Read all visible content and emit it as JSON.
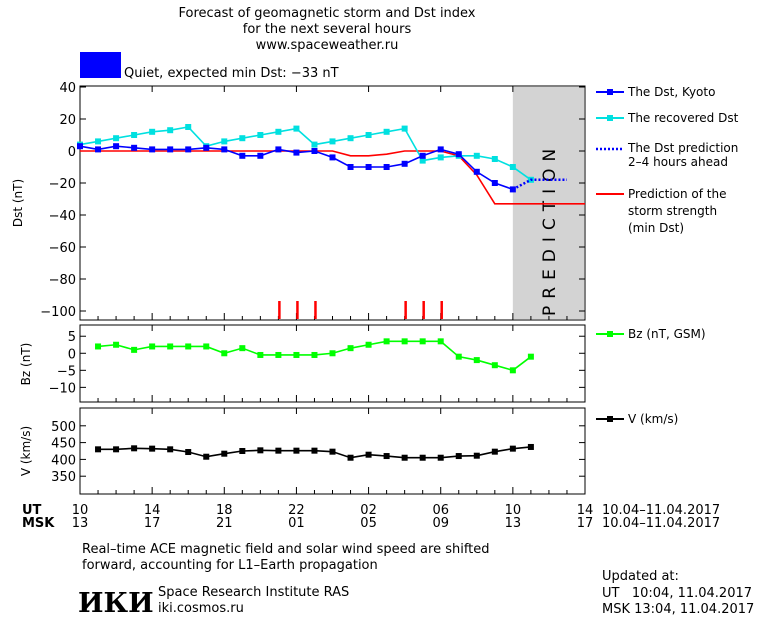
{
  "header": {
    "title_line1": "Forecast of geomagnetic storm and Dst index",
    "title_line2": "for the next several hours",
    "url": "www.spaceweather.ru",
    "status_color": "#0000ff",
    "status_text": "Quiet, expected min Dst: −33 nT"
  },
  "chart_data": [
    {
      "type": "line",
      "panel": "dst",
      "ylabel": "Dst (nT)",
      "ylim": [
        -105,
        40
      ],
      "yticks": [
        40,
        20,
        0,
        -20,
        -40,
        -60,
        -80,
        -100
      ],
      "x_range_hours": [
        0,
        28
      ],
      "prediction_band": {
        "x_from": 24,
        "x_to": 28,
        "label": "PREDICTION",
        "color": "#d3d3d3"
      },
      "series": [
        {
          "name": "The Dst, Kyoto",
          "color": "#0000ff",
          "marker": "square",
          "x": [
            0,
            1,
            2,
            3,
            4,
            5,
            6,
            7,
            8,
            9,
            10,
            11,
            12,
            13,
            14,
            15,
            16,
            17,
            18,
            19,
            20,
            21,
            22,
            23,
            24
          ],
          "y": [
            3,
            1,
            3,
            2,
            1,
            1,
            1,
            2,
            1,
            -3,
            -3,
            1,
            -1,
            0,
            -4,
            -10,
            -10,
            -10,
            -8,
            -3,
            1,
            -2,
            -13,
            -20,
            -24
          ]
        },
        {
          "name": "The recovered Dst",
          "color": "#00e0e0",
          "marker": "square",
          "x": [
            0,
            1,
            2,
            3,
            4,
            5,
            6,
            7,
            8,
            9,
            10,
            11,
            12,
            13,
            14,
            15,
            16,
            17,
            18,
            19,
            20,
            21,
            22,
            23,
            24,
            25
          ],
          "y": [
            4,
            6,
            8,
            10,
            12,
            13,
            15,
            3,
            6,
            8,
            10,
            12,
            14,
            4,
            6,
            8,
            10,
            12,
            14,
            -6,
            -4,
            -3,
            -3,
            -5,
            -10,
            -18
          ]
        },
        {
          "name": "The Dst prediction",
          "label_line2": "2–4 hours ahead",
          "color": "#0000ff",
          "style": "dotted",
          "x": [
            24,
            25,
            26,
            27
          ],
          "y": [
            -24,
            -18,
            -18,
            -18
          ]
        },
        {
          "name": "Prediction of the",
          "label_line2": "storm strength",
          "label_line3": "(min Dst)",
          "color": "#ff0000",
          "style": "solid",
          "x": [
            0,
            14,
            15,
            16,
            17,
            18,
            19,
            20,
            21,
            22,
            23,
            24,
            28
          ],
          "y": [
            0,
            0,
            -3,
            -3,
            -2,
            0,
            0,
            0,
            -3,
            -15,
            -33,
            -33,
            -33
          ]
        }
      ],
      "event_markers": {
        "color": "#ff0000",
        "x": [
          11,
          12,
          13,
          18,
          19,
          20
        ]
      }
    },
    {
      "type": "line",
      "panel": "bz",
      "ylabel": "Bz (nT)",
      "ylim": [
        -14,
        8
      ],
      "yticks": [
        5,
        0,
        -5,
        -10
      ],
      "series": [
        {
          "name": "Bz (nT, GSM)",
          "color": "#00ff00",
          "marker": "square",
          "x": [
            1,
            2,
            3,
            4,
            5,
            6,
            7,
            8,
            9,
            10,
            11,
            12,
            13,
            14,
            15,
            16,
            17,
            18,
            19,
            20,
            21,
            22,
            23,
            24,
            25
          ],
          "y": [
            2,
            2.5,
            1,
            2,
            2,
            2,
            2,
            0,
            1.5,
            -0.5,
            -0.5,
            -0.5,
            -0.5,
            0,
            1.5,
            2.5,
            3.5,
            3.5,
            3.5,
            3.5,
            -1,
            -2,
            -3.5,
            -5,
            -1
          ]
        }
      ]
    },
    {
      "type": "line",
      "panel": "v",
      "ylabel": "V (km/s)",
      "ylim": [
        300,
        550
      ],
      "yticks": [
        500,
        450,
        400,
        350
      ],
      "series": [
        {
          "name": "V (km/s)",
          "color": "#000000",
          "marker": "square",
          "x": [
            1,
            2,
            3,
            4,
            5,
            6,
            7,
            8,
            9,
            10,
            11,
            12,
            13,
            14,
            15,
            16,
            17,
            18,
            19,
            20,
            21,
            22,
            23,
            24,
            25
          ],
          "y": [
            430,
            430,
            433,
            432,
            430,
            422,
            408,
            417,
            425,
            427,
            426,
            426,
            426,
            423,
            405,
            414,
            410,
            405,
            405,
            405,
            410,
            411,
            423,
            432,
            437
          ]
        }
      ]
    }
  ],
  "time_axis": {
    "ut_label": "UT",
    "msk_label": "MSK",
    "ut_ticks": [
      "10",
      "14",
      "18",
      "22",
      "02",
      "06",
      "10",
      "14"
    ],
    "msk_ticks": [
      "13",
      "17",
      "21",
      "01",
      "05",
      "09",
      "13",
      "17"
    ],
    "range_ut": "10.04–11.04.2017",
    "range_msk": "10.04–11.04.2017"
  },
  "footer": {
    "note_line1": "Real–time ACE magnetic field and solar wind speed are shifted",
    "note_line2": "forward, accounting for L1–Earth propagation",
    "logo_text": "ИКИ",
    "institute": "Space Research Institute RAS",
    "site": "iki.cosmos.ru",
    "updated_label": "Updated at:",
    "updated_ut": "UT   10:04, 11.04.2017",
    "updated_msk": "MSK 13:04, 11.04.2017"
  }
}
